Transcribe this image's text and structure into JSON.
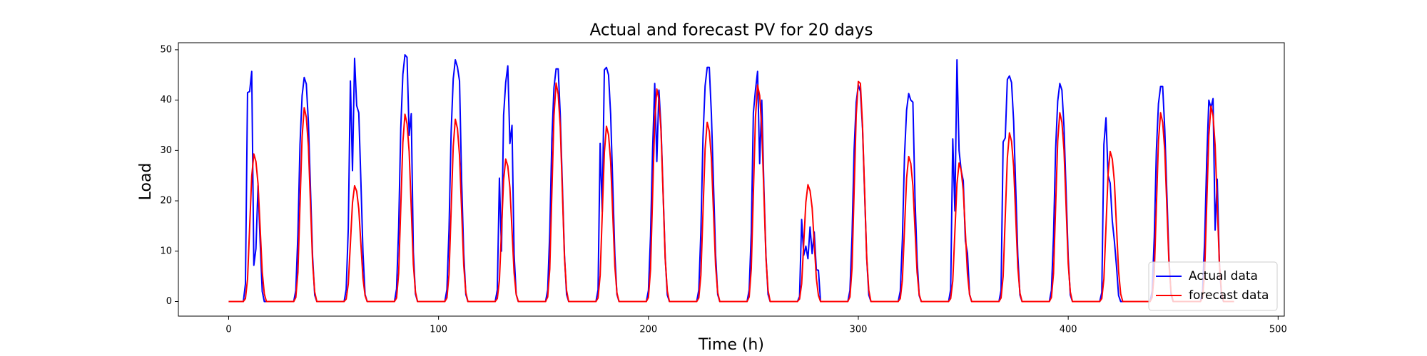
{
  "chart_data": {
    "type": "line",
    "title": "Actual and forecast PV for 20 days",
    "xlabel": "Time (h)",
    "ylabel": "Load",
    "x": [
      0,
      7,
      8,
      9,
      10,
      11,
      12,
      13,
      14,
      15,
      16,
      17,
      18,
      24,
      31,
      32,
      33,
      34,
      35,
      36,
      37,
      38,
      39,
      40,
      41,
      42,
      48,
      55,
      56,
      57,
      58,
      59,
      60,
      61,
      62,
      63,
      64,
      65,
      66,
      72,
      79,
      80,
      81,
      82,
      83,
      84,
      85,
      86,
      87,
      88,
      89,
      90,
      96,
      103,
      104,
      105,
      106,
      107,
      108,
      109,
      110,
      111,
      112,
      113,
      114,
      120,
      127,
      128,
      129,
      130,
      131,
      132,
      133,
      134,
      135,
      136,
      137,
      138,
      144,
      151,
      152,
      153,
      154,
      155,
      156,
      157,
      158,
      159,
      160,
      161,
      162,
      168,
      175,
      176,
      177,
      178,
      179,
      180,
      181,
      182,
      183,
      184,
      185,
      186,
      192,
      199,
      200,
      201,
      202,
      203,
      204,
      205,
      206,
      207,
      208,
      209,
      210,
      216,
      223,
      224,
      225,
      226,
      227,
      228,
      229,
      230,
      231,
      232,
      233,
      234,
      240,
      247,
      248,
      249,
      250,
      251,
      252,
      253,
      254,
      255,
      256,
      257,
      258,
      264,
      271,
      272,
      273,
      274,
      275,
      276,
      277,
      278,
      279,
      280,
      281,
      282,
      288,
      295,
      296,
      297,
      298,
      299,
      300,
      301,
      302,
      303,
      304,
      305,
      306,
      312,
      319,
      320,
      321,
      322,
      323,
      324,
      325,
      326,
      327,
      328,
      329,
      330,
      336,
      343,
      344,
      345,
      346,
      347,
      348,
      349,
      350,
      351,
      352,
      353,
      354,
      360,
      367,
      368,
      369,
      370,
      371,
      372,
      373,
      374,
      375,
      376,
      377,
      378,
      384,
      391,
      392,
      393,
      394,
      395,
      396,
      397,
      398,
      399,
      400,
      401,
      402,
      408,
      415,
      416,
      417,
      418,
      419,
      420,
      421,
      422,
      423,
      424,
      425,
      426,
      432,
      439,
      440,
      441,
      442,
      443,
      444,
      445,
      446,
      447,
      448,
      449,
      450,
      456,
      463,
      464,
      465,
      466,
      467,
      468,
      469,
      470,
      471,
      472,
      473,
      474,
      479
    ],
    "series": [
      {
        "name": "Actual data",
        "color": "#0000ff",
        "values": [
          0,
          0,
          3.5,
          41.5,
          41.7,
          45.7,
          7.2,
          10.5,
          23,
          12,
          2,
          0,
          0,
          0,
          0,
          2.2,
          13.4,
          31.2,
          40.9,
          44.5,
          43.2,
          35.6,
          22.3,
          8.9,
          1.3,
          0,
          0,
          0,
          2.4,
          14.5,
          43.8,
          26,
          48.3,
          38.9,
          37.5,
          24,
          9.7,
          1.4,
          0,
          0,
          0,
          2.5,
          14.7,
          34.3,
          45.1,
          49,
          48.5,
          33,
          37.3,
          9.8,
          1.5,
          0,
          0,
          0,
          2.4,
          14.4,
          33.6,
          44.2,
          48,
          46.6,
          43.8,
          24,
          9.6,
          1.4,
          0,
          0,
          0,
          2.3,
          24.5,
          10,
          37,
          43.5,
          46.8,
          31.4,
          35,
          9.4,
          1.4,
          0,
          0,
          0,
          2.3,
          13.9,
          32.3,
          42.5,
          46.2,
          46.2,
          37,
          23.1,
          9.2,
          1.4,
          0,
          0,
          0,
          2.3,
          31.4,
          17.8,
          46,
          46.5,
          45,
          37.2,
          23.3,
          9.3,
          1.4,
          0,
          0,
          0,
          2.2,
          13,
          30.3,
          43.3,
          27.8,
          42,
          34.6,
          21.7,
          8.7,
          1.3,
          0,
          0,
          0,
          2.3,
          14,
          32.6,
          42.8,
          46.5,
          46.5,
          37.2,
          23.3,
          9.3,
          1.4,
          0,
          0,
          0,
          2.3,
          13.7,
          37.5,
          42,
          45.7,
          27.4,
          40,
          22.9,
          9.1,
          1.4,
          0,
          0,
          0,
          1,
          16.3,
          9.2,
          11,
          8.5,
          14.8,
          9.5,
          13.8,
          6.3,
          6.2,
          0,
          0,
          0,
          2.2,
          12.9,
          30.1,
          39.6,
          43,
          41.7,
          34.4,
          21.5,
          8.6,
          1.3,
          0,
          0,
          0,
          2.1,
          12.4,
          28.9,
          38,
          41.3,
          40,
          39.6,
          20.7,
          8.3,
          1.2,
          0,
          0,
          0,
          2.4,
          32.3,
          18,
          48,
          30,
          26,
          24,
          12,
          9.6,
          1.4,
          0,
          0,
          0,
          2.2,
          31.7,
          32.5,
          44.1,
          44.8,
          43.5,
          35.8,
          22.4,
          9,
          1.3,
          0,
          0,
          0,
          2.2,
          13,
          30.3,
          39.8,
          43.3,
          42,
          34.6,
          21.7,
          8.7,
          1.3,
          0,
          0,
          0,
          1.8,
          31.2,
          36.5,
          25,
          23.5,
          16,
          12,
          7,
          1.2,
          0,
          0,
          0,
          0,
          2.1,
          12.8,
          29.9,
          39.3,
          42.7,
          42.7,
          34.2,
          21.4,
          8.5,
          1.3,
          0,
          0,
          0,
          2,
          12.1,
          28.2,
          40,
          38.5,
          40.3,
          14.2,
          24.3,
          8,
          1.2,
          0,
          0
        ]
      },
      {
        "name": "forecast data",
        "color": "#ff0000",
        "values": [
          0,
          0,
          0.6,
          4.4,
          14.7,
          24.9,
          29.3,
          27.8,
          23.4,
          14.7,
          5.9,
          1.5,
          0,
          0,
          0,
          0.8,
          5.8,
          19.3,
          32.7,
          38.5,
          36.6,
          30.8,
          19.3,
          7.7,
          1.9,
          0,
          0,
          0,
          0.5,
          3.5,
          11.5,
          19.6,
          23,
          21.9,
          18.4,
          11.5,
          4.6,
          1.2,
          0,
          0,
          0,
          0.7,
          5.6,
          18.6,
          31.6,
          37.2,
          35.3,
          29.8,
          18.6,
          7.4,
          1.9,
          0,
          0,
          0,
          0.7,
          5.4,
          18.1,
          30.8,
          36.2,
          34.4,
          29,
          18.1,
          7.2,
          1.8,
          0,
          0,
          0,
          0.6,
          4.2,
          14.2,
          24.1,
          28.3,
          26.9,
          22.6,
          14.2,
          5.7,
          1.4,
          0,
          0,
          0,
          0.9,
          6.5,
          21.7,
          36.9,
          43.4,
          41.2,
          34.7,
          21.7,
          8.7,
          2.2,
          0,
          0,
          0,
          0.7,
          5.2,
          17.4,
          29.6,
          34.8,
          33.1,
          27.8,
          17.4,
          7,
          1.7,
          0,
          0,
          0,
          0.8,
          6.3,
          21.1,
          35.9,
          42.2,
          40.1,
          33.8,
          21.1,
          8.4,
          2.1,
          0,
          0,
          0,
          0.7,
          5.3,
          17.8,
          30.3,
          35.6,
          33.8,
          28.5,
          17.8,
          7.1,
          1.8,
          0,
          0,
          0,
          0.9,
          6.5,
          21.5,
          36.6,
          43,
          40.9,
          34.4,
          21.5,
          8.6,
          2.2,
          0,
          0,
          0,
          0.5,
          3.5,
          11.6,
          19.7,
          23.2,
          22,
          18.6,
          11.6,
          4.6,
          1.2,
          0,
          0,
          0,
          0.9,
          6.6,
          21.9,
          37.1,
          43.7,
          43.3,
          35,
          21.9,
          8.7,
          2.2,
          0,
          0,
          0,
          0.6,
          4.3,
          14.4,
          24.5,
          28.8,
          27.4,
          23,
          14.4,
          5.8,
          1.4,
          0,
          0,
          0,
          0.6,
          4.1,
          13.8,
          23.4,
          27.5,
          26.1,
          22,
          13.8,
          5.5,
          1.4,
          0,
          0,
          0,
          0.7,
          5,
          16.8,
          28.5,
          33.5,
          31.8,
          26.8,
          16.8,
          6.7,
          1.7,
          0,
          0,
          0,
          0.8,
          5.6,
          18.8,
          31.9,
          37.5,
          35.6,
          30,
          18.8,
          7.5,
          1.9,
          0,
          0,
          0,
          0.6,
          4.5,
          14.9,
          25.3,
          29.8,
          28.3,
          23.8,
          14.9,
          6,
          1.5,
          0,
          0,
          0,
          0.8,
          5.6,
          18.8,
          31.9,
          37.5,
          35.6,
          30,
          18.8,
          7.5,
          1.9,
          0,
          0,
          0,
          0.8,
          5.8,
          19.4,
          33,
          38.8,
          36.9,
          31,
          19.4,
          7.8,
          1.9,
          0,
          0
        ]
      }
    ],
    "xlim": [
      -23.95,
      502.95
    ],
    "xticks": [
      0,
      100,
      200,
      300,
      400,
      500
    ],
    "ylim": [
      -2.9,
      51.4
    ],
    "yticks": [
      0,
      10,
      20,
      30,
      40,
      50
    ],
    "legend": "lower right",
    "grid": false
  }
}
